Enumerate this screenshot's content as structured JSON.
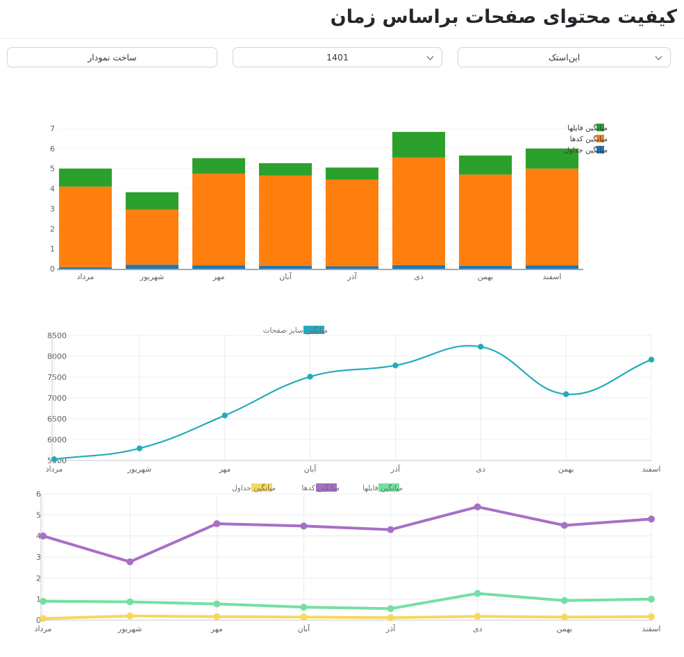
{
  "page": {
    "title": "کیفیت محتوای صفحات براساس زمان"
  },
  "controls": {
    "create_chart_button": "ساخت نمودار",
    "year_select": {
      "value": "1401"
    },
    "source_select": {
      "value": "این‌استک"
    }
  },
  "colors": {
    "tables_bar": "#1f77b4",
    "codes_bar": "#ff7f0e",
    "files_bar": "#2ca02c",
    "pagesize_line": "#22acba",
    "tables_line": "#f6d860",
    "codes_line": "#a76fc7",
    "files_line": "#75dfa3",
    "grid": "#ececec",
    "axis": "#c9c9c9",
    "zero_axis": "#a6a6a6",
    "tick_text": "#616161"
  },
  "months": [
    "مرداد",
    "شهریور",
    "مهر",
    "آبان",
    "آذر",
    "دی",
    "بهمن",
    "اسفند"
  ],
  "chart_data": [
    {
      "type": "bar",
      "stacked": true,
      "categories": [
        "مرداد",
        "شهریور",
        "مهر",
        "آبان",
        "آذر",
        "دی",
        "بهمن",
        "اسفند"
      ],
      "series": [
        {
          "name": "میانگین جداول",
          "color": "#1f77b4",
          "values": [
            0.08,
            0.2,
            0.17,
            0.15,
            0.12,
            0.18,
            0.15,
            0.17
          ]
        },
        {
          "name": "میانگین کدها",
          "color": "#ff7f0e",
          "values": [
            4.02,
            2.75,
            4.58,
            4.5,
            4.33,
            5.37,
            4.55,
            4.83
          ]
        },
        {
          "name": "میانگین فایلها",
          "color": "#2ca02c",
          "values": [
            0.9,
            0.87,
            0.77,
            0.62,
            0.6,
            1.28,
            0.95,
            1.0
          ]
        }
      ],
      "legend_order_top_to_bottom": [
        "میانگین فایلها",
        "میانگین کدها",
        "میانگین جداول"
      ],
      "legend_position": "right",
      "ylim": [
        0,
        7
      ],
      "ytick_step": 1,
      "grid": true
    },
    {
      "type": "line",
      "categories": [
        "مرداد",
        "شهریور",
        "مهر",
        "آبان",
        "آذر",
        "دی",
        "بهمن",
        "اسفند"
      ],
      "series": [
        {
          "name": "میانگین سایز صفحات",
          "color": "#22acba",
          "values": [
            5530,
            5790,
            6580,
            7510,
            7780,
            8230,
            7090,
            7920
          ]
        }
      ],
      "legend_position": "top-center",
      "ylim": [
        5500,
        8500
      ],
      "ytick_step": 500,
      "grid": true,
      "smooth": true
    },
    {
      "type": "line",
      "categories": [
        "مرداد",
        "شهریور",
        "مهر",
        "آبان",
        "آذر",
        "دی",
        "بهمن",
        "اسفند"
      ],
      "series": [
        {
          "name": "میانگین جداول",
          "color": "#f6d860",
          "values": [
            0.08,
            0.2,
            0.17,
            0.15,
            0.12,
            0.18,
            0.15,
            0.17
          ]
        },
        {
          "name": "میانگین کدها",
          "color": "#a76fc7",
          "values": [
            4.0,
            2.77,
            4.58,
            4.47,
            4.3,
            5.38,
            4.5,
            4.8
          ]
        },
        {
          "name": "میانگین فایلها",
          "color": "#75dfa3",
          "values": [
            0.9,
            0.87,
            0.77,
            0.62,
            0.55,
            1.27,
            0.93,
            1.0
          ]
        }
      ],
      "legend_position": "top-center",
      "ylim": [
        0,
        6
      ],
      "ytick_step": 1,
      "grid": true,
      "smooth": false
    }
  ]
}
